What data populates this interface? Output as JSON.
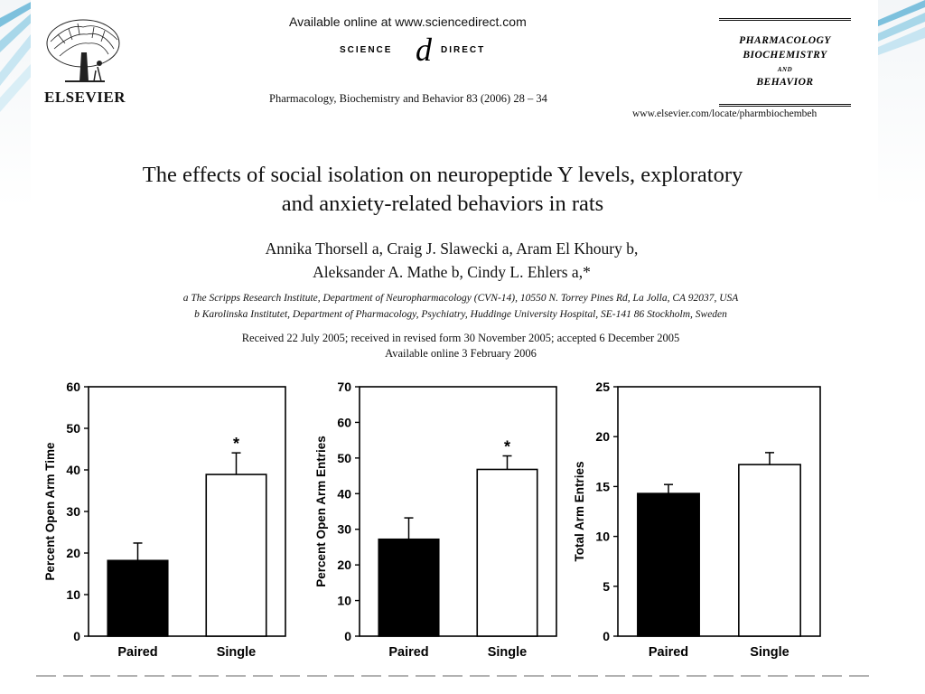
{
  "header": {
    "available_online": "Available online at www.sciencedirect.com",
    "sd_left": "SCIENCE",
    "sd_right": "DIRECT",
    "sd_symbol": "d",
    "publisher": "ELSEVIER",
    "journal_ref": "Pharmacology, Biochemistry and Behavior 83 (2006) 28 – 34",
    "journal_name_1": "PHARMACOLOGY",
    "journal_name_2": "BIOCHEMISTRY",
    "journal_name_and": "AND",
    "journal_name_3": "BEHAVIOR",
    "journal_url": "www.elsevier.com/locate/pharmbiochembeh"
  },
  "paper": {
    "title_line1": "The effects of social isolation on neuropeptide Y levels, exploratory",
    "title_line2": "and anxiety-related behaviors in rats",
    "authors_line1": "Annika Thorsell a, Craig J. Slawecki a, Aram El Khoury b,",
    "authors_line2": "Aleksander A. Mathe b, Cindy L. Ehlers a,*",
    "affiliation_a": "a The Scripps Research Institute, Department of Neuropharmacology (CVN-14), 10550 N. Torrey Pines Rd, La Jolla, CA 92037, USA",
    "affiliation_b": "b Karolinska Institutet, Department of Pharmacology, Psychiatry, Huddinge University Hospital, SE-141 86 Stockholm, Sweden",
    "received_line1": "Received 22 July 2005; received in revised form 30 November 2005; accepted 6 December 2005",
    "received_line2": "Available online 3 February 2006"
  },
  "colors": {
    "paired_bar": "#000000",
    "single_bar": "#ffffff",
    "axis": "#000000"
  },
  "chart_data": [
    {
      "type": "bar",
      "categories": [
        "Paired",
        "Single"
      ],
      "values": [
        18.2,
        38.9
      ],
      "errors": [
        4.2,
        5.2
      ],
      "significance": [
        "",
        "*"
      ],
      "ylabel": "Percent Open Arm Time",
      "ylim": [
        0,
        60
      ],
      "yticks": [
        0,
        10,
        20,
        30,
        40,
        50,
        60
      ]
    },
    {
      "type": "bar",
      "categories": [
        "Paired",
        "Single"
      ],
      "values": [
        27.2,
        46.8
      ],
      "errors": [
        6.0,
        3.8
      ],
      "significance": [
        "",
        "*"
      ],
      "ylabel": "Percent Open Arm Entries",
      "ylim": [
        0,
        70
      ],
      "yticks": [
        0,
        10,
        20,
        30,
        40,
        50,
        60,
        70
      ]
    },
    {
      "type": "bar",
      "categories": [
        "Paired",
        "Single"
      ],
      "values": [
        14.3,
        17.2
      ],
      "errors": [
        0.9,
        1.2
      ],
      "significance": [
        "",
        ""
      ],
      "ylabel": "Total Arm Entries",
      "ylim": [
        0,
        25
      ],
      "yticks": [
        0,
        5,
        10,
        15,
        20,
        25
      ]
    }
  ]
}
